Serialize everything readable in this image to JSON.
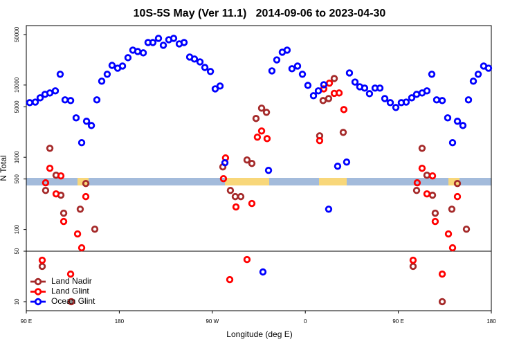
{
  "chart_data": {
    "type": "scatter",
    "title": "10S-5S May (Ver 11.1)   2014-09-06 to 2023-04-30",
    "x_label": "Longitude (deg E)",
    "y_label": "N Total",
    "xlim": [
      90,
      540
    ],
    "xticks": [
      {
        "value": 90,
        "label": "90 E"
      },
      {
        "value": 180,
        "label": "180"
      },
      {
        "value": 270,
        "label": "90 W"
      },
      {
        "value": 360,
        "label": "0"
      },
      {
        "value": 450,
        "label": "90 E"
      },
      {
        "value": 540,
        "label": "180"
      }
    ],
    "ylim": [
      7.5,
      66500
    ],
    "ylog": true,
    "yticks": [
      10,
      50,
      100,
      500,
      1000,
      5000,
      10000,
      50000
    ],
    "hline": 50,
    "legend": "bottom-left",
    "series": [
      {
        "name": "Land Nadir",
        "color": "#a52a2a",
        "x": [
          105.4,
          108.7,
          112.8,
          118.8,
          123.5,
          126.2,
          133.5,
          142.2,
          147.6,
          156.3,
          280.2,
          287.5,
          292.2,
          297.6,
          303.6,
          308.3,
          312.3,
          317.7,
          322.4,
          373.9,
          377.2,
          382.6,
          388.0,
          396.7,
          464.3,
          467.7,
          473.0,
          477.7,
          483.1,
          485.7,
          492.5,
          501.8,
          507.2,
          515.9
        ],
        "values": [
          30.8,
          347,
          1330,
          564,
          298,
          168,
          10,
          191,
          433,
          101,
          735,
          347,
          285,
          285,
          916,
          820,
          3440,
          4780,
          4190,
          1980,
          6090,
          6500,
          12300,
          2210,
          30.8,
          347,
          1330,
          564,
          298,
          168,
          10,
          191,
          433,
          101
        ]
      },
      {
        "name": "Land Glint",
        "color": "#ff0000",
        "x": [
          105.4,
          108.7,
          112.8,
          118.8,
          123.5,
          126.2,
          132.9,
          139.6,
          143.6,
          147.6,
          280.8,
          282.8,
          286.9,
          292.9,
          303.6,
          308.3,
          313.6,
          317.7,
          323.0,
          373.9,
          377.9,
          383.3,
          388.0,
          392.7,
          397.3,
          464.3,
          468.3,
          473.0,
          477.7,
          483.1,
          485.7,
          492.5,
          498.5,
          502.5,
          507.2
        ],
        "values": [
          37.5,
          443,
          703,
          311,
          552,
          129,
          24.1,
          86.7,
          55.7,
          285,
          505,
          978,
          20.2,
          205,
          38.3,
          229,
          1900,
          2310,
          1810,
          1700,
          8850,
          10600,
          7670,
          7760,
          4570,
          37.5,
          443,
          703,
          311,
          552,
          129,
          24.1,
          86.7,
          55.7,
          285
        ]
      },
      {
        "name": "Ocean Glint",
        "color": "#0000ff",
        "x": [
          93.3,
          98.7,
          103.4,
          108.1,
          112.8,
          118.1,
          122.8,
          127.5,
          132.9,
          138.2,
          143.6,
          148.3,
          153.0,
          158.3,
          163.0,
          168.3,
          173.0,
          178.4,
          183.1,
          188.4,
          193.1,
          197.8,
          203.2,
          207.8,
          212.5,
          217.9,
          222.6,
          227.9,
          232.6,
          238.0,
          242.7,
          248.1,
          252.7,
          258.1,
          262.8,
          268.2,
          272.8,
          277.5,
          282.2,
          319.0,
          324.4,
          327.7,
          332.4,
          337.7,
          342.4,
          347.1,
          352.5,
          357.2,
          362.5,
          367.9,
          372.6,
          377.9,
          382.6,
          391.3,
          400.0,
          402.7,
          408.1,
          412.7,
          417.4,
          422.1,
          427.5,
          432.2,
          436.9,
          442.2,
          447.6,
          452.9,
          457.6,
          463.0,
          467.7,
          473.0,
          477.7,
          482.4,
          487.1,
          492.5,
          497.8,
          502.5,
          507.2,
          512.5,
          517.9,
          522.6,
          527.3,
          532.6,
          537.3
        ],
        "values": [
          5700,
          5800,
          6650,
          7430,
          7760,
          8300,
          14100,
          6230,
          6090,
          3510,
          1590,
          3150,
          2750,
          6230,
          11300,
          14100,
          18700,
          17100,
          18300,
          23900,
          30400,
          29100,
          27900,
          38800,
          38800,
          44300,
          35500,
          42400,
          44300,
          37100,
          38800,
          24400,
          22900,
          20900,
          17500,
          15400,
          8850,
          9680,
          838,
          25.8,
          658,
          15700,
          22300,
          28500,
          30400,
          16800,
          18300,
          14100,
          9890,
          7110,
          8300,
          10100,
          191,
          751,
          857,
          14700,
          11000,
          9460,
          9060,
          7590,
          9060,
          9060,
          6500,
          5700,
          4890,
          5700,
          5800,
          6650,
          7430,
          7760,
          8300,
          14100,
          6230,
          6090,
          3510,
          1590,
          3150,
          2750,
          6230,
          11300,
          14100,
          18300,
          17100
        ]
      }
    ]
  }
}
